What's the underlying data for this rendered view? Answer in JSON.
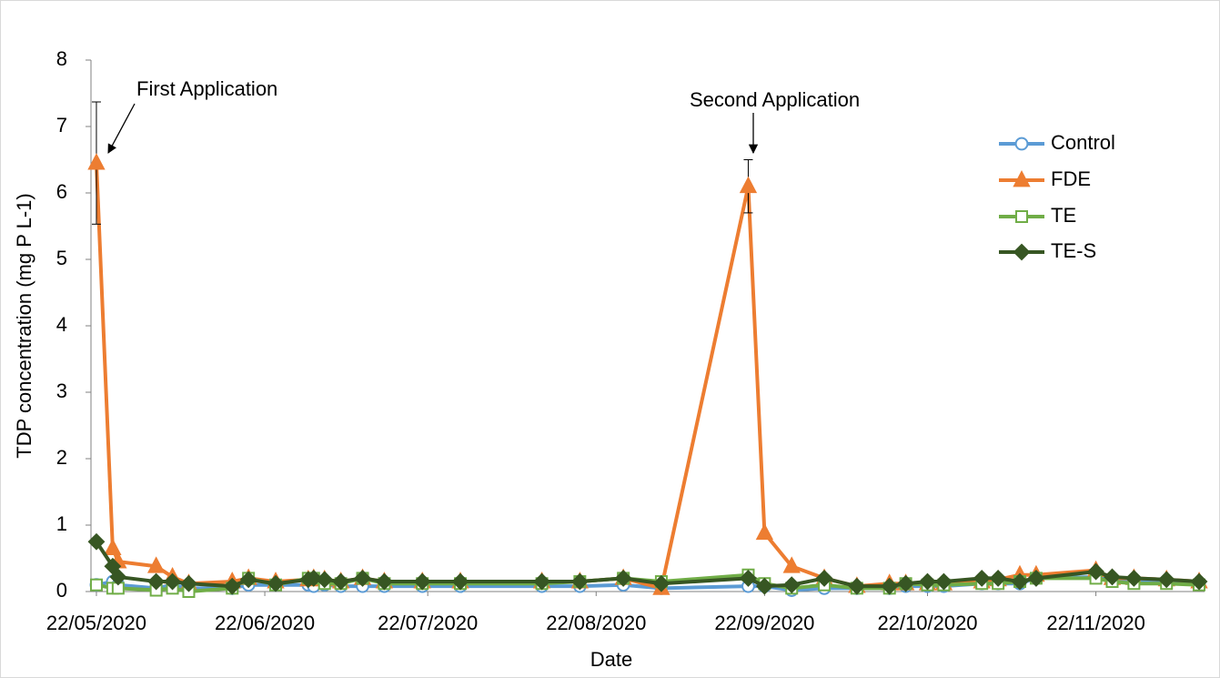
{
  "chart_data": {
    "type": "line",
    "y_label": "TDP concentration (mg P L-1)",
    "x_label": "Date",
    "annotations": [
      "First  Application",
      "Second  Application"
    ],
    "x": [
      "2020-05-22",
      "2020-05-25",
      "2020-05-26",
      "2020-06-02",
      "2020-06-05",
      "2020-06-08",
      "2020-06-16",
      "2020-06-19",
      "2020-06-24",
      "2020-06-30",
      "2020-07-01",
      "2020-07-03",
      "2020-07-06",
      "2020-07-10",
      "2020-07-14",
      "2020-07-21",
      "2020-07-28",
      "2020-08-12",
      "2020-08-19",
      "2020-08-27",
      "2020-09-03",
      "2020-09-19",
      "2020-09-22",
      "2020-09-27",
      "2020-10-03",
      "2020-10-09",
      "2020-10-15",
      "2020-10-18",
      "2020-10-22",
      "2020-10-25",
      "2020-11-01",
      "2020-11-04",
      "2020-11-08",
      "2020-11-11",
      "2020-11-22",
      "2020-11-25",
      "2020-11-29",
      "2020-12-05",
      "2020-12-11"
    ],
    "series": [
      {
        "name": "Control",
        "color": "#5b9bd5",
        "marker": "circle",
        "filled": false,
        "values": [
          0.1,
          0.15,
          0.1,
          0.05,
          0.1,
          0.05,
          0.05,
          0.1,
          0.1,
          0.1,
          0.08,
          0.1,
          0.08,
          0.08,
          0.08,
          0.08,
          0.08,
          0.08,
          0.08,
          0.1,
          0.05,
          0.08,
          0.08,
          0.02,
          0.05,
          0.05,
          0.05,
          0.08,
          0.08,
          0.08,
          0.12,
          0.12,
          0.12,
          0.2,
          0.22,
          0.18,
          0.15,
          0.15,
          0.12
        ]
      },
      {
        "name": "FDE",
        "color": "#ed7d31",
        "marker": "triangle",
        "filled": true,
        "values": [
          6.45,
          0.65,
          0.45,
          0.38,
          0.22,
          0.12,
          0.15,
          0.2,
          0.15,
          0.18,
          0.2,
          0.18,
          0.15,
          0.2,
          0.15,
          0.15,
          0.15,
          0.15,
          0.15,
          0.2,
          0.05,
          6.1,
          0.88,
          0.38,
          0.2,
          0.08,
          0.12,
          0.12,
          0.12,
          0.12,
          0.15,
          0.18,
          0.25,
          0.25,
          0.32,
          0.2,
          0.2,
          0.18,
          0.15
        ],
        "errors": [
          0.92,
          null,
          null,
          null,
          null,
          null,
          null,
          null,
          null,
          null,
          null,
          null,
          null,
          null,
          null,
          null,
          null,
          null,
          null,
          null,
          null,
          0.4,
          null,
          null,
          null,
          null,
          null,
          null,
          null,
          null,
          null,
          null,
          null,
          null,
          null,
          null,
          null,
          null,
          null
        ]
      },
      {
        "name": "TE",
        "color": "#70ad47",
        "marker": "square",
        "filled": false,
        "values": [
          0.1,
          0.05,
          0.05,
          0.02,
          0.05,
          0.0,
          0.05,
          0.2,
          0.1,
          0.2,
          0.2,
          0.12,
          0.12,
          0.2,
          0.12,
          0.12,
          0.12,
          0.12,
          0.15,
          0.2,
          0.15,
          0.25,
          0.12,
          0.05,
          0.1,
          0.05,
          0.05,
          0.12,
          0.1,
          0.1,
          0.12,
          0.12,
          0.15,
          0.2,
          0.2,
          0.15,
          0.12,
          0.12,
          0.1
        ]
      },
      {
        "name": "TE-S",
        "color": "#375623",
        "marker": "diamond",
        "filled": true,
        "values": [
          0.75,
          0.38,
          0.22,
          0.15,
          0.15,
          0.12,
          0.08,
          0.18,
          0.12,
          0.18,
          0.2,
          0.18,
          0.15,
          0.2,
          0.15,
          0.15,
          0.15,
          0.15,
          0.15,
          0.2,
          0.12,
          0.2,
          0.08,
          0.1,
          0.2,
          0.08,
          0.08,
          0.12,
          0.15,
          0.15,
          0.2,
          0.2,
          0.15,
          0.2,
          0.3,
          0.22,
          0.2,
          0.18,
          0.15
        ]
      }
    ],
    "xlim": [
      "2020-05-21",
      "2020-12-12"
    ],
    "xticks": [
      {
        "value": "2020-05-22",
        "label": "22/05/2020"
      },
      {
        "value": "2020-06-22",
        "label": "22/06/2020"
      },
      {
        "value": "2020-07-22",
        "label": "22/07/2020"
      },
      {
        "value": "2020-08-22",
        "label": "22/08/2020"
      },
      {
        "value": "2020-09-22",
        "label": "22/09/2020"
      },
      {
        "value": "2020-10-22",
        "label": "22/10/2020"
      },
      {
        "value": "2020-11-22",
        "label": "22/11/2020"
      }
    ],
    "ylim": [
      0,
      8
    ],
    "yticks": [
      0,
      1,
      2,
      3,
      4,
      5,
      6,
      7,
      8
    ],
    "legend": "upper right",
    "grid": false
  }
}
